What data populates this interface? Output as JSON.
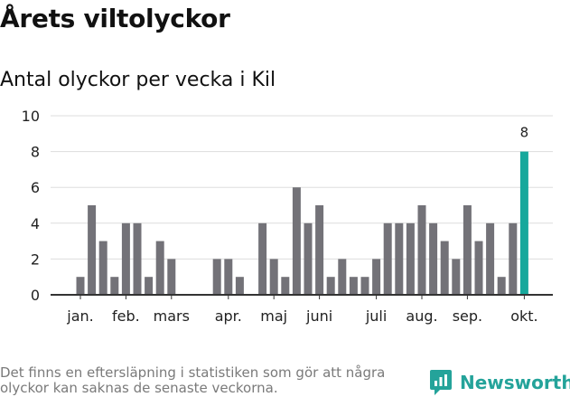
{
  "title": "Årets viltolyckor",
  "subtitle": "Antal olyckor per vecka i Kil",
  "footnote": "Det finns en eftersläpning i statistiken som gör att några olyckor kan saknas de senaste veckorna.",
  "brand": {
    "name": "Newsworthy",
    "logo_icon": "newsworthy-logo-icon",
    "color": "#24a39a"
  },
  "chart_data": {
    "type": "bar",
    "title": "Antal olyckor per vecka i Kil",
    "xlabel": "",
    "ylabel": "",
    "ylim": [
      0,
      10
    ],
    "yticks": [
      0,
      2,
      4,
      6,
      8,
      10
    ],
    "grid": true,
    "weeks": [
      1,
      2,
      3,
      4,
      5,
      6,
      7,
      8,
      9,
      10,
      11,
      12,
      13,
      14,
      15,
      16,
      17,
      18,
      19,
      20,
      21,
      22,
      23,
      24,
      25,
      26,
      27,
      28,
      29,
      30,
      31,
      32,
      33,
      34,
      35,
      36,
      37,
      38,
      39,
      40
    ],
    "values": [
      1,
      5,
      3,
      1,
      4,
      4,
      1,
      3,
      2,
      0,
      0,
      0,
      2,
      2,
      1,
      0,
      4,
      2,
      1,
      6,
      4,
      5,
      1,
      2,
      1,
      1,
      2,
      4,
      4,
      4,
      5,
      4,
      3,
      2,
      5,
      3,
      4,
      1,
      4,
      8
    ],
    "highlight_index": 39,
    "highlight_label": "8",
    "bar_color": "#737278",
    "highlight_color": "#17a89c",
    "month_labels": [
      {
        "label": "jan.",
        "week": 1
      },
      {
        "label": "feb.",
        "week": 5
      },
      {
        "label": "mars",
        "week": 9
      },
      {
        "label": "apr.",
        "week": 14
      },
      {
        "label": "maj",
        "week": 18
      },
      {
        "label": "juni",
        "week": 22
      },
      {
        "label": "juli",
        "week": 27
      },
      {
        "label": "aug.",
        "week": 31
      },
      {
        "label": "sep.",
        "week": 35
      },
      {
        "label": "okt.",
        "week": 40
      }
    ]
  }
}
